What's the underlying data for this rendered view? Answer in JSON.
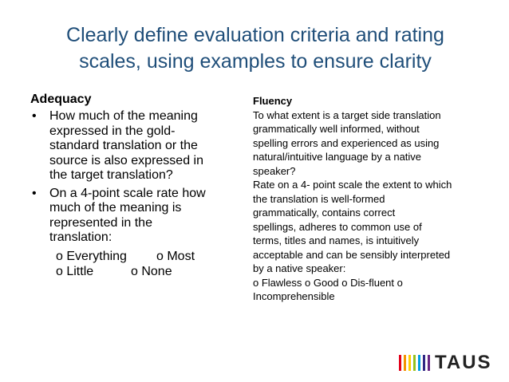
{
  "title_line1": "Clearly define evaluation criteria and rating",
  "title_line2": "scales, using examples to ensure clarity",
  "adequacy": {
    "heading": "Adequacy",
    "bullet_symbol": "•",
    "bullet1": [
      "How much of the meaning",
      "expressed in the gold-",
      "standard translation or the",
      "source is also expressed in",
      "the target translation?"
    ],
    "bullet2": [
      "On a 4-point scale rate how",
      "much of the meaning is",
      "represented in the",
      "translation:"
    ],
    "options": [
      "o Everything",
      "o Most",
      "o Little",
      "o None"
    ]
  },
  "fluency": {
    "heading": "Fluency",
    "lines": [
      "To what extent is a target side translation",
      "grammatically well informed, without",
      "spelling errors and experienced as using",
      "natural/intuitive language by a native",
      "speaker?",
      "Rate on a 4- point scale the extent to which",
      "the translation is well-formed",
      "grammatically, contains correct",
      "spellings, adheres to common use of",
      "terms, titles and names, is intuitively",
      "acceptable and can be sensibly interpreted",
      "by a native speaker:",
      "o Flawless  o Good  o Dis-fluent  o",
      "Incomprehensible"
    ]
  },
  "logo": {
    "text": "TAUS",
    "bar_colors": [
      "#e2001a",
      "#f39200",
      "#ffcc00",
      "#95c11f",
      "#009fe3",
      "#312783",
      "#662483"
    ]
  }
}
